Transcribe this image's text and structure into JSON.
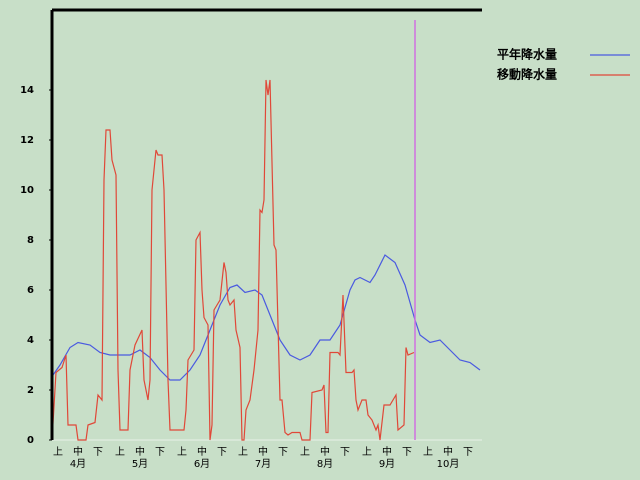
{
  "chart_data": {
    "type": "line",
    "xlim": [
      0,
      215
    ],
    "ylim": [
      0,
      17.2
    ],
    "yticks": [
      0,
      2,
      4,
      6,
      8,
      10,
      12,
      14
    ],
    "xticks": [
      {
        "value": 3,
        "label": "上"
      },
      {
        "value": 13,
        "label": "中"
      },
      {
        "value": 23,
        "label": "下"
      },
      {
        "value": 34,
        "label": "上"
      },
      {
        "value": 44,
        "label": "中"
      },
      {
        "value": 54,
        "label": "下"
      },
      {
        "value": 65,
        "label": "上"
      },
      {
        "value": 75,
        "label": "中"
      },
      {
        "value": 85,
        "label": "下"
      },
      {
        "value": 95.5,
        "label": "上"
      },
      {
        "value": 105.5,
        "label": "中"
      },
      {
        "value": 115.5,
        "label": "下"
      },
      {
        "value": 126.5,
        "label": "上"
      },
      {
        "value": 136.5,
        "label": "中"
      },
      {
        "value": 146.5,
        "label": "下"
      },
      {
        "value": 157.5,
        "label": "上"
      },
      {
        "value": 167.5,
        "label": "中"
      },
      {
        "value": 177.5,
        "label": "下"
      },
      {
        "value": 188,
        "label": "上"
      },
      {
        "value": 198,
        "label": "中"
      },
      {
        "value": 208,
        "label": "下"
      }
    ],
    "month_labels": [
      {
        "value": 13,
        "label": "4月"
      },
      {
        "value": 44,
        "label": "5月"
      },
      {
        "value": 75,
        "label": "6月"
      },
      {
        "value": 105.5,
        "label": "7月"
      },
      {
        "value": 136.5,
        "label": "8月"
      },
      {
        "value": 167.5,
        "label": "9月"
      },
      {
        "value": 198,
        "label": "10月"
      }
    ],
    "marker_x": 181.5,
    "marker_color": "#d070e0",
    "series": [
      {
        "name": "平年降水量",
        "color": "#4a5ae0",
        "x": [
          0.5,
          4,
          9,
          13,
          19,
          24,
          29,
          39,
          44,
          49,
          54,
          59,
          64,
          69,
          74,
          79,
          84,
          89,
          92.5,
          96.5,
          101.5,
          105,
          109,
          114,
          119,
          124,
          129,
          134,
          139,
          144,
          149,
          151.5,
          154,
          159,
          161.5,
          166.5,
          171.5,
          176.5,
          181.5,
          184,
          189,
          194,
          199,
          204,
          209,
          214
        ],
        "values": [
          2.6,
          3.0,
          3.7,
          3.9,
          3.8,
          3.5,
          3.4,
          3.4,
          3.6,
          3.3,
          2.8,
          2.4,
          2.4,
          2.8,
          3.4,
          4.4,
          5.4,
          6.1,
          6.2,
          5.9,
          6.0,
          5.8,
          5.0,
          4.0,
          3.4,
          3.2,
          3.4,
          4.0,
          4.0,
          4.6,
          6.0,
          6.4,
          6.5,
          6.3,
          6.6,
          7.4,
          7.1,
          6.2,
          4.8,
          4.2,
          3.9,
          4.0,
          3.6,
          3.2,
          3.1,
          2.8
        ]
      },
      {
        "name": "移動降水量",
        "color": "#e04838",
        "x": [
          0,
          2,
          5,
          7,
          8,
          12,
          13,
          17,
          18,
          21.5,
          23,
          25,
          26,
          27,
          29,
          30,
          32,
          33,
          34,
          38,
          39,
          41.5,
          45,
          46,
          48,
          49,
          50,
          52,
          53,
          55,
          56,
          58,
          59,
          66,
          67,
          68,
          71,
          72,
          74,
          75,
          76,
          78,
          79,
          80,
          81,
          84,
          86,
          87,
          88,
          89,
          91,
          92,
          94,
          95,
          96,
          97,
          99,
          101,
          103,
          104,
          105,
          106,
          107,
          108,
          109,
          111,
          112,
          114,
          115,
          116.5,
          118,
          120,
          124,
          125,
          129,
          130,
          135,
          136,
          137,
          138,
          139,
          143,
          144,
          145.5,
          147,
          150,
          151,
          152,
          153,
          155,
          157,
          158,
          160,
          162,
          163,
          164,
          166,
          169,
          172,
          173,
          176,
          177,
          178,
          181
        ],
        "values": [
          0,
          2.7,
          2.9,
          3.4,
          0.6,
          0.6,
          0,
          0,
          0.6,
          0.7,
          1.8,
          1.6,
          10.4,
          12.4,
          12.4,
          11.2,
          10.6,
          2.8,
          0.4,
          0.4,
          2.8,
          3.8,
          4.4,
          2.4,
          1.6,
          2.4,
          10.0,
          11.6,
          11.4,
          11.4,
          10.0,
          2.4,
          0.4,
          0.4,
          1.2,
          3.2,
          3.6,
          8.0,
          8.3,
          6.0,
          4.9,
          4.6,
          0,
          0.6,
          5.2,
          5.6,
          7.1,
          6.7,
          5.6,
          5.4,
          5.6,
          4.4,
          3.7,
          0,
          0,
          1.2,
          1.6,
          2.8,
          4.4,
          9.2,
          9.1,
          9.6,
          14.4,
          13.8,
          14.4,
          7.8,
          7.6,
          1.6,
          1.6,
          0.3,
          0.2,
          0.3,
          0.3,
          0,
          0,
          1.9,
          2.0,
          2.2,
          0.3,
          0.3,
          3.5,
          3.5,
          3.4,
          5.8,
          2.7,
          2.7,
          2.8,
          1.6,
          1.2,
          1.6,
          1.6,
          1.0,
          0.8,
          0.4,
          0.6,
          0,
          1.4,
          1.4,
          1.8,
          0.4,
          0.6,
          3.7,
          3.4,
          3.5
        ]
      }
    ]
  }
}
